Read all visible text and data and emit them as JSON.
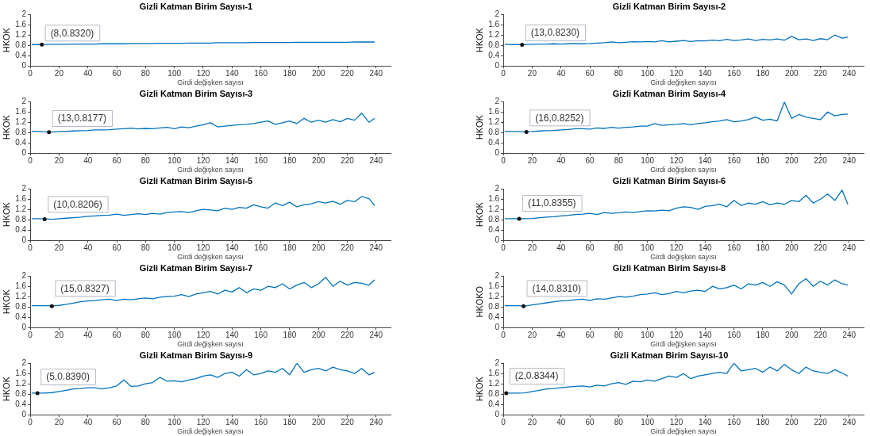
{
  "chart_data": [
    {
      "type": "line",
      "title": "Gizli Katman Birim Sayısı-1",
      "xlabel": "Girdi değişken sayısı",
      "ylabel": "HKOK",
      "xlim": [
        0,
        250
      ],
      "xticks": [
        0,
        20,
        40,
        60,
        80,
        100,
        120,
        140,
        160,
        180,
        200,
        220,
        240
      ],
      "ylim": [
        0,
        2
      ],
      "yticks": [
        0,
        0.4,
        0.8,
        1.2,
        1.6,
        2
      ],
      "grid": false,
      "annotations": [
        {
          "text": "(8,0.8320)",
          "x": 8,
          "y": 0.832
        }
      ],
      "x": [
        1,
        5,
        10,
        15,
        20,
        25,
        30,
        35,
        40,
        45,
        50,
        55,
        60,
        65,
        70,
        75,
        80,
        85,
        90,
        95,
        100,
        105,
        110,
        115,
        120,
        125,
        130,
        135,
        140,
        145,
        150,
        155,
        160,
        165,
        170,
        175,
        180,
        185,
        190,
        195,
        200,
        205,
        210,
        215,
        220,
        225,
        230,
        235,
        239
      ],
      "series": [
        {
          "color": "#0072bd",
          "values": [
            0.83,
            0.83,
            0.83,
            0.84,
            0.84,
            0.84,
            0.85,
            0.85,
            0.85,
            0.85,
            0.86,
            0.86,
            0.86,
            0.86,
            0.87,
            0.87,
            0.87,
            0.87,
            0.88,
            0.88,
            0.88,
            0.88,
            0.89,
            0.89,
            0.89,
            0.89,
            0.9,
            0.9,
            0.9,
            0.9,
            0.9,
            0.91,
            0.91,
            0.91,
            0.91,
            0.91,
            0.91,
            0.92,
            0.92,
            0.92,
            0.92,
            0.92,
            0.92,
            0.92,
            0.92,
            0.93,
            0.93,
            0.93,
            0.93
          ]
        }
      ]
    },
    {
      "type": "line",
      "title": "Gizli Katman Birim Sayısı-2",
      "xlabel": "Girdi değişken sayısı",
      "ylabel": "HKOK",
      "xlim": [
        0,
        250
      ],
      "xticks": [
        0,
        20,
        40,
        60,
        80,
        100,
        120,
        140,
        160,
        180,
        200,
        220,
        240
      ],
      "ylim": [
        0,
        2
      ],
      "yticks": [
        0,
        0.4,
        0.8,
        1.2,
        1.6,
        2
      ],
      "grid": false,
      "annotations": [
        {
          "text": "(13,0.8230)",
          "x": 13,
          "y": 0.823
        }
      ],
      "x": [
        1,
        5,
        10,
        15,
        20,
        25,
        30,
        35,
        40,
        45,
        50,
        55,
        60,
        65,
        70,
        75,
        80,
        85,
        90,
        95,
        100,
        105,
        110,
        115,
        120,
        125,
        130,
        135,
        140,
        145,
        150,
        155,
        160,
        165,
        170,
        175,
        180,
        185,
        190,
        195,
        200,
        205,
        210,
        215,
        220,
        225,
        230,
        235,
        239
      ],
      "series": [
        {
          "color": "#0072bd",
          "values": [
            0.84,
            0.83,
            0.83,
            0.83,
            0.84,
            0.85,
            0.85,
            0.86,
            0.85,
            0.86,
            0.87,
            0.86,
            0.87,
            0.89,
            0.9,
            0.93,
            0.9,
            0.92,
            0.94,
            0.93,
            0.95,
            0.93,
            0.98,
            0.93,
            0.96,
            0.99,
            0.95,
            0.98,
            0.97,
            1.0,
            0.98,
            1.03,
            0.99,
            1.01,
            1.05,
            0.99,
            1.03,
            1.01,
            1.05,
            1.0,
            1.15,
            1.02,
            1.05,
            0.99,
            1.06,
            1.02,
            1.2,
            1.08,
            1.12
          ]
        }
      ]
    },
    {
      "type": "line",
      "title": "Gizli Katman Birim Sayısı-3",
      "xlabel": "Girdi değişken sayısı",
      "ylabel": "HKOK",
      "xlim": [
        0,
        250
      ],
      "xticks": [
        0,
        20,
        40,
        60,
        80,
        100,
        120,
        140,
        160,
        180,
        200,
        220,
        240
      ],
      "ylim": [
        0,
        2
      ],
      "yticks": [
        0,
        0.4,
        0.8,
        1.2,
        1.6,
        2
      ],
      "grid": false,
      "annotations": [
        {
          "text": "(13,0.8177)",
          "x": 13,
          "y": 0.8177
        }
      ],
      "x": [
        1,
        5,
        10,
        15,
        20,
        25,
        30,
        35,
        40,
        45,
        50,
        55,
        60,
        65,
        70,
        75,
        80,
        85,
        90,
        95,
        100,
        105,
        110,
        115,
        120,
        125,
        130,
        135,
        140,
        145,
        150,
        155,
        160,
        165,
        170,
        175,
        180,
        185,
        190,
        195,
        200,
        205,
        210,
        215,
        220,
        225,
        230,
        235,
        239
      ],
      "series": [
        {
          "color": "#0072bd",
          "values": [
            0.85,
            0.84,
            0.83,
            0.82,
            0.84,
            0.85,
            0.86,
            0.87,
            0.88,
            0.9,
            0.9,
            0.91,
            0.93,
            0.95,
            0.97,
            0.94,
            0.96,
            0.95,
            0.98,
            1.0,
            0.95,
            1.02,
            0.99,
            1.05,
            1.1,
            1.18,
            1.02,
            1.05,
            1.08,
            1.1,
            1.12,
            1.15,
            1.2,
            1.25,
            1.12,
            1.18,
            1.25,
            1.15,
            1.35,
            1.2,
            1.28,
            1.2,
            1.3,
            1.22,
            1.35,
            1.28,
            1.55,
            1.2,
            1.35
          ]
        }
      ]
    },
    {
      "type": "line",
      "title": "Gizli Katman Birim Sayısı-4",
      "xlabel": "Girdi değişken sayısı",
      "ylabel": "HKOK",
      "xlim": [
        0,
        250
      ],
      "xticks": [
        0,
        20,
        40,
        60,
        80,
        100,
        120,
        140,
        160,
        180,
        200,
        220,
        240
      ],
      "ylim": [
        0,
        2
      ],
      "yticks": [
        0,
        0.4,
        0.8,
        1.2,
        1.6,
        2
      ],
      "grid": false,
      "annotations": [
        {
          "text": "(16,0.8252)",
          "x": 16,
          "y": 0.8252
        }
      ],
      "x": [
        1,
        5,
        10,
        15,
        20,
        25,
        30,
        35,
        40,
        45,
        50,
        55,
        60,
        65,
        70,
        75,
        80,
        85,
        90,
        95,
        100,
        105,
        110,
        115,
        120,
        125,
        130,
        135,
        140,
        145,
        150,
        155,
        160,
        165,
        170,
        175,
        180,
        185,
        190,
        195,
        200,
        205,
        210,
        215,
        220,
        225,
        230,
        235,
        239
      ],
      "series": [
        {
          "color": "#0072bd",
          "values": [
            0.85,
            0.84,
            0.84,
            0.83,
            0.84,
            0.86,
            0.87,
            0.88,
            0.9,
            0.92,
            0.95,
            0.95,
            0.93,
            0.98,
            0.96,
            1.0,
            0.97,
            1.0,
            1.02,
            1.05,
            1.05,
            1.15,
            1.08,
            1.1,
            1.12,
            1.15,
            1.1,
            1.15,
            1.18,
            1.22,
            1.25,
            1.3,
            1.22,
            1.25,
            1.3,
            1.4,
            1.28,
            1.32,
            1.25,
            1.98,
            1.35,
            1.5,
            1.4,
            1.35,
            1.3,
            1.6,
            1.45,
            1.5,
            1.52
          ]
        }
      ]
    },
    {
      "type": "line",
      "title": "Gizli Katman Birim Sayısı-5",
      "xlabel": "Girdi değişken sayısı",
      "ylabel": "HKOK",
      "xlim": [
        0,
        250
      ],
      "xticks": [
        0,
        20,
        40,
        60,
        80,
        100,
        120,
        140,
        160,
        180,
        200,
        220,
        240
      ],
      "ylim": [
        0,
        2
      ],
      "yticks": [
        0,
        0.4,
        0.8,
        1.2,
        1.6,
        2
      ],
      "grid": false,
      "annotations": [
        {
          "text": "(10,0.8206)",
          "x": 10,
          "y": 0.8206
        }
      ],
      "x": [
        1,
        5,
        10,
        15,
        20,
        25,
        30,
        35,
        40,
        45,
        50,
        55,
        60,
        65,
        70,
        75,
        80,
        85,
        90,
        95,
        100,
        105,
        110,
        115,
        120,
        125,
        130,
        135,
        140,
        145,
        150,
        155,
        160,
        165,
        170,
        175,
        180,
        185,
        190,
        195,
        200,
        205,
        210,
        215,
        220,
        225,
        230,
        235,
        239
      ],
      "series": [
        {
          "color": "#0072bd",
          "values": [
            0.84,
            0.84,
            0.83,
            0.82,
            0.84,
            0.86,
            0.88,
            0.9,
            0.93,
            0.95,
            0.97,
            0.98,
            1.02,
            0.97,
            1.0,
            1.03,
            1.0,
            1.05,
            1.02,
            1.08,
            1.1,
            1.12,
            1.08,
            1.15,
            1.2,
            1.18,
            1.15,
            1.25,
            1.2,
            1.28,
            1.25,
            1.38,
            1.3,
            1.25,
            1.45,
            1.35,
            1.48,
            1.3,
            1.38,
            1.42,
            1.5,
            1.45,
            1.52,
            1.4,
            1.55,
            1.5,
            1.7,
            1.62,
            1.35
          ]
        }
      ]
    },
    {
      "type": "line",
      "title": "Gizli Katman Birim Sayısı-6",
      "xlabel": "Girdi değişken sayısı",
      "ylabel": "HKOK",
      "xlim": [
        0,
        250
      ],
      "xticks": [
        0,
        20,
        40,
        60,
        80,
        100,
        120,
        140,
        160,
        180,
        200,
        220,
        240
      ],
      "ylim": [
        0,
        2
      ],
      "yticks": [
        0,
        0.4,
        0.8,
        1.2,
        1.6,
        2
      ],
      "grid": false,
      "annotations": [
        {
          "text": "(11,0.8355)",
          "x": 11,
          "y": 0.8355
        }
      ],
      "x": [
        1,
        5,
        10,
        15,
        20,
        25,
        30,
        35,
        40,
        45,
        50,
        55,
        60,
        65,
        70,
        75,
        80,
        85,
        90,
        95,
        100,
        105,
        110,
        115,
        120,
        125,
        130,
        135,
        140,
        145,
        150,
        155,
        160,
        165,
        170,
        175,
        180,
        185,
        190,
        195,
        200,
        205,
        210,
        215,
        220,
        225,
        230,
        235,
        239
      ],
      "series": [
        {
          "color": "#0072bd",
          "values": [
            0.84,
            0.84,
            0.84,
            0.84,
            0.85,
            0.88,
            0.9,
            0.92,
            0.95,
            0.97,
            1.0,
            1.02,
            1.05,
            1.0,
            1.08,
            1.05,
            1.07,
            1.1,
            1.08,
            1.12,
            1.15,
            1.14,
            1.17,
            1.15,
            1.25,
            1.3,
            1.28,
            1.2,
            1.32,
            1.35,
            1.4,
            1.3,
            1.55,
            1.35,
            1.45,
            1.4,
            1.5,
            1.38,
            1.45,
            1.4,
            1.55,
            1.5,
            1.75,
            1.45,
            1.6,
            1.8,
            1.55,
            1.95,
            1.4
          ]
        }
      ]
    },
    {
      "type": "line",
      "title": "Gizli Katman Birim Sayısı-7",
      "xlabel": "Girdi değişken sayısı",
      "ylabel": "HKOK",
      "xlim": [
        0,
        250
      ],
      "xticks": [
        0,
        20,
        40,
        60,
        80,
        100,
        120,
        140,
        160,
        180,
        200,
        220,
        240
      ],
      "ylim": [
        0,
        2
      ],
      "yticks": [
        0,
        0.4,
        0.8,
        1.2,
        1.6,
        2
      ],
      "grid": false,
      "annotations": [
        {
          "text": "(15,0.8327)",
          "x": 15,
          "y": 0.8327
        }
      ],
      "x": [
        1,
        5,
        10,
        15,
        20,
        25,
        30,
        35,
        40,
        45,
        50,
        55,
        60,
        65,
        70,
        75,
        80,
        85,
        90,
        95,
        100,
        105,
        110,
        115,
        120,
        125,
        130,
        135,
        140,
        145,
        150,
        155,
        160,
        165,
        170,
        175,
        180,
        185,
        190,
        195,
        200,
        205,
        210,
        215,
        220,
        225,
        230,
        235,
        239
      ],
      "series": [
        {
          "color": "#0072bd",
          "values": [
            0.85,
            0.85,
            0.85,
            0.84,
            0.86,
            0.9,
            0.95,
            1.0,
            1.03,
            1.05,
            1.08,
            1.1,
            1.05,
            1.1,
            1.08,
            1.12,
            1.15,
            1.12,
            1.18,
            1.2,
            1.22,
            1.28,
            1.2,
            1.3,
            1.35,
            1.4,
            1.3,
            1.45,
            1.38,
            1.55,
            1.35,
            1.5,
            1.45,
            1.6,
            1.55,
            1.7,
            1.5,
            1.65,
            1.75,
            1.55,
            1.7,
            1.95,
            1.6,
            1.8,
            1.65,
            1.75,
            1.72,
            1.65,
            1.85
          ]
        }
      ]
    },
    {
      "type": "line",
      "title": "Gizli Katman Birim Sayısı-8",
      "xlabel": "Girdi değişken sayısı",
      "ylabel": "HKOKO",
      "xlim": [
        0,
        250
      ],
      "xticks": [
        0,
        20,
        40,
        60,
        80,
        100,
        120,
        140,
        160,
        180,
        200,
        220,
        240
      ],
      "ylim": [
        0,
        2
      ],
      "yticks": [
        0,
        0.4,
        0.8,
        1.2,
        1.6,
        2
      ],
      "grid": false,
      "annotations": [
        {
          "text": "(14,0.8310)",
          "x": 14,
          "y": 0.831
        }
      ],
      "x": [
        1,
        5,
        10,
        15,
        20,
        25,
        30,
        35,
        40,
        45,
        50,
        55,
        60,
        65,
        70,
        75,
        80,
        85,
        90,
        95,
        100,
        105,
        110,
        115,
        120,
        125,
        130,
        135,
        140,
        145,
        150,
        155,
        160,
        165,
        170,
        175,
        180,
        185,
        190,
        195,
        200,
        205,
        210,
        215,
        220,
        225,
        230,
        235,
        239
      ],
      "series": [
        {
          "color": "#0072bd",
          "values": [
            0.85,
            0.85,
            0.85,
            0.83,
            0.88,
            0.92,
            0.96,
            1.0,
            1.03,
            1.05,
            1.08,
            1.1,
            1.05,
            1.12,
            1.1,
            1.15,
            1.2,
            1.18,
            1.22,
            1.28,
            1.3,
            1.35,
            1.28,
            1.32,
            1.4,
            1.35,
            1.42,
            1.45,
            1.4,
            1.6,
            1.5,
            1.55,
            1.65,
            1.5,
            1.7,
            1.65,
            1.75,
            1.6,
            1.78,
            1.65,
            1.3,
            1.7,
            1.9,
            1.6,
            1.8,
            1.65,
            1.85,
            1.7,
            1.65
          ]
        }
      ]
    },
    {
      "type": "line",
      "title": "Gizli Katman Birim Sayısı-9",
      "xlabel": "Girdi değişken sayısı",
      "ylabel": "HKOK",
      "xlim": [
        0,
        250
      ],
      "xticks": [
        0,
        20,
        40,
        60,
        80,
        100,
        120,
        140,
        160,
        180,
        200,
        220,
        240
      ],
      "ylim": [
        0,
        2
      ],
      "yticks": [
        0,
        0.4,
        0.8,
        1.2,
        1.6,
        2
      ],
      "grid": false,
      "annotations": [
        {
          "text": "(5,0.8390)",
          "x": 5,
          "y": 0.839
        }
      ],
      "x": [
        1,
        5,
        10,
        15,
        20,
        25,
        30,
        35,
        40,
        45,
        50,
        55,
        60,
        65,
        70,
        75,
        80,
        85,
        90,
        95,
        100,
        105,
        110,
        115,
        120,
        125,
        130,
        135,
        140,
        145,
        150,
        155,
        160,
        165,
        170,
        175,
        180,
        185,
        190,
        195,
        200,
        205,
        210,
        215,
        220,
        225,
        230,
        235,
        239
      ],
      "series": [
        {
          "color": "#0072bd",
          "values": [
            0.84,
            0.84,
            0.84,
            0.86,
            0.9,
            0.95,
            1.0,
            1.02,
            1.05,
            1.05,
            1.0,
            1.05,
            1.12,
            1.35,
            1.1,
            1.12,
            1.2,
            1.25,
            1.45,
            1.3,
            1.32,
            1.28,
            1.35,
            1.4,
            1.5,
            1.55,
            1.45,
            1.6,
            1.65,
            1.5,
            1.75,
            1.55,
            1.6,
            1.7,
            1.65,
            1.8,
            1.55,
            2.0,
            1.65,
            1.75,
            1.8,
            1.7,
            1.85,
            1.75,
            1.7,
            1.6,
            1.8,
            1.55,
            1.65
          ]
        }
      ]
    },
    {
      "type": "line",
      "title": "Gizli Katman Birim Sayısı-10",
      "xlabel": "Girdi değişken sayısı",
      "ylabel": "HKOK",
      "xlim": [
        0,
        250
      ],
      "xticks": [
        0,
        20,
        40,
        60,
        80,
        100,
        120,
        140,
        160,
        180,
        200,
        220,
        240
      ],
      "ylim": [
        0,
        2
      ],
      "yticks": [
        0,
        0.4,
        0.8,
        1.2,
        1.6,
        2
      ],
      "grid": false,
      "annotations": [
        {
          "text": "(2,0.8344)",
          "x": 2,
          "y": 0.8344
        }
      ],
      "x": [
        1,
        5,
        10,
        15,
        20,
        25,
        30,
        35,
        40,
        45,
        50,
        55,
        60,
        65,
        70,
        75,
        80,
        85,
        90,
        95,
        100,
        105,
        110,
        115,
        120,
        125,
        130,
        135,
        140,
        145,
        150,
        155,
        160,
        165,
        170,
        175,
        180,
        185,
        190,
        195,
        200,
        205,
        210,
        215,
        220,
        225,
        230,
        235,
        239
      ],
      "series": [
        {
          "color": "#0072bd",
          "values": [
            0.84,
            0.84,
            0.84,
            0.85,
            0.9,
            0.95,
            1.0,
            1.02,
            1.05,
            1.08,
            1.1,
            1.12,
            1.08,
            1.15,
            1.12,
            1.2,
            1.25,
            1.18,
            1.3,
            1.28,
            1.35,
            1.3,
            1.4,
            1.5,
            1.45,
            1.6,
            1.4,
            1.5,
            1.55,
            1.6,
            1.65,
            1.6,
            2.0,
            1.7,
            1.75,
            1.8,
            1.65,
            1.85,
            1.7,
            1.95,
            1.75,
            1.6,
            1.85,
            1.7,
            1.65,
            1.6,
            1.75,
            1.62,
            1.5
          ]
        }
      ]
    }
  ]
}
